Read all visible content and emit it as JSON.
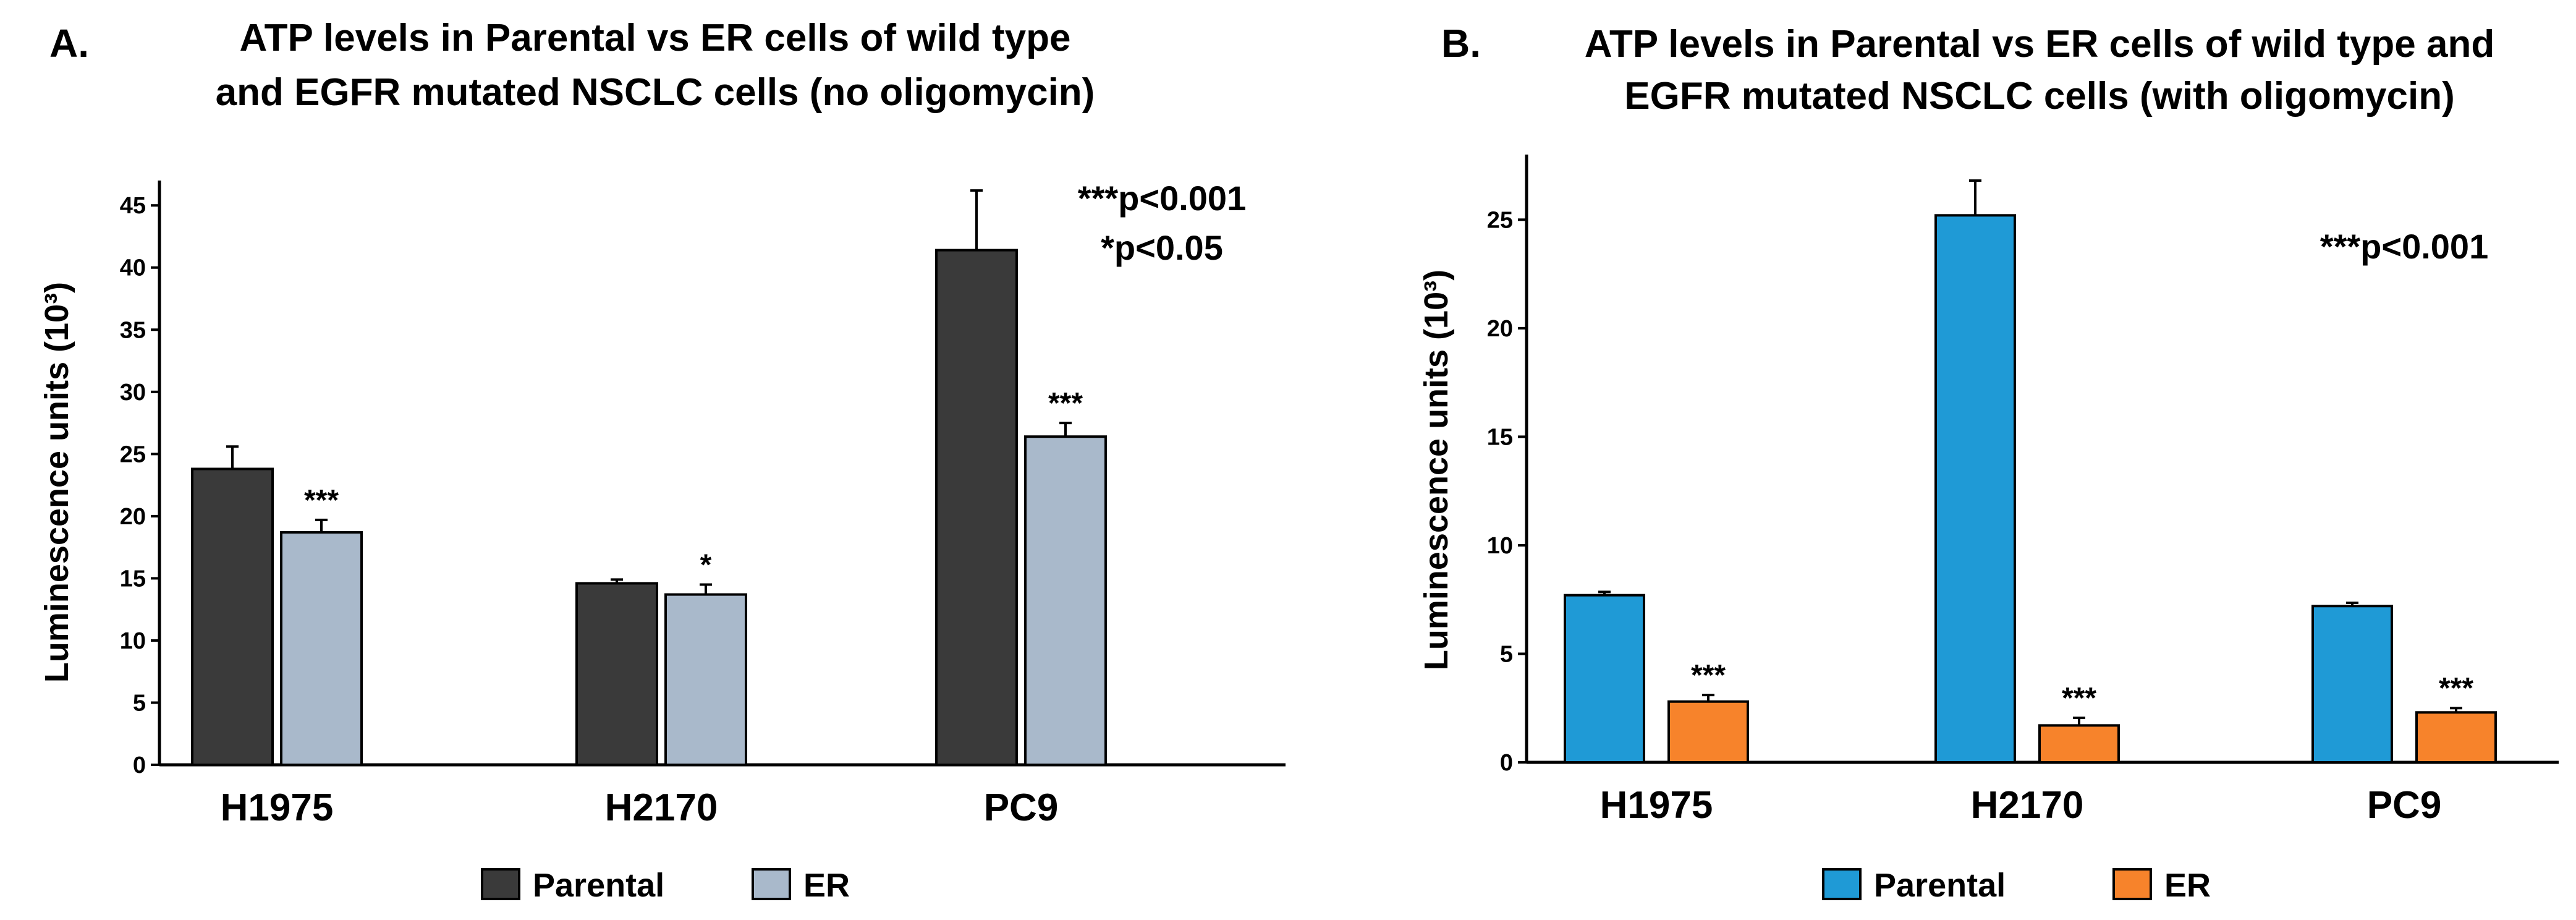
{
  "chart_data": [
    {
      "type": "bar",
      "panel": "A.",
      "title_lines": [
        "ATP levels in Parental vs ER cells of wild type",
        "and EGFR mutated NSCLC cells (no oligomycin)"
      ],
      "ylabel": "Luminescence units (10³)",
      "xlabel": "",
      "ylim": [
        0,
        47
      ],
      "yticks": [
        0,
        5,
        10,
        15,
        20,
        25,
        30,
        35,
        40,
        45
      ],
      "categories": [
        "H1975",
        "H2170",
        "PC9"
      ],
      "series": [
        {
          "name": "Parental",
          "color": "#3a3a3a",
          "values": [
            23.8,
            14.6,
            41.4
          ],
          "errors": [
            1.8,
            0.3,
            4.8
          ]
        },
        {
          "name": "ER",
          "color": "#a9b9cb",
          "values": [
            18.7,
            13.7,
            26.4
          ],
          "errors": [
            1.0,
            0.8,
            1.1
          ]
        }
      ],
      "significance": [
        {
          "series": "ER",
          "category": "H1975",
          "label": "***"
        },
        {
          "series": "ER",
          "category": "H2170",
          "label": "*"
        },
        {
          "series": "ER",
          "category": "PC9",
          "label": "***"
        }
      ],
      "annotations": [
        "***p<0.001",
        "*p<0.05"
      ],
      "legend_position": "bottom"
    },
    {
      "type": "bar",
      "panel": "B.",
      "title_lines": [
        "ATP levels in Parental vs ER cells of wild type and",
        "EGFR mutated NSCLC cells (with oligomycin)"
      ],
      "ylabel": "Luminescence units (10³)",
      "xlabel": "",
      "ylim": [
        0,
        28
      ],
      "yticks": [
        0,
        5,
        10,
        15,
        20,
        25
      ],
      "categories": [
        "H1975",
        "H2170",
        "PC9"
      ],
      "series": [
        {
          "name": "Parental",
          "color": "#1f9ad6",
          "values": [
            7.7,
            25.2,
            7.2
          ],
          "errors": [
            0.15,
            1.6,
            0.15
          ]
        },
        {
          "name": "ER",
          "color": "#f7832b",
          "values": [
            2.8,
            1.7,
            2.3
          ],
          "errors": [
            0.3,
            0.35,
            0.2
          ]
        }
      ],
      "significance": [
        {
          "series": "ER",
          "category": "H1975",
          "label": "***"
        },
        {
          "series": "ER",
          "category": "H2170",
          "label": "***"
        },
        {
          "series": "ER",
          "category": "PC9",
          "label": "***"
        }
      ],
      "annotations": [
        "***p<0.001"
      ],
      "legend_position": "bottom"
    }
  ]
}
